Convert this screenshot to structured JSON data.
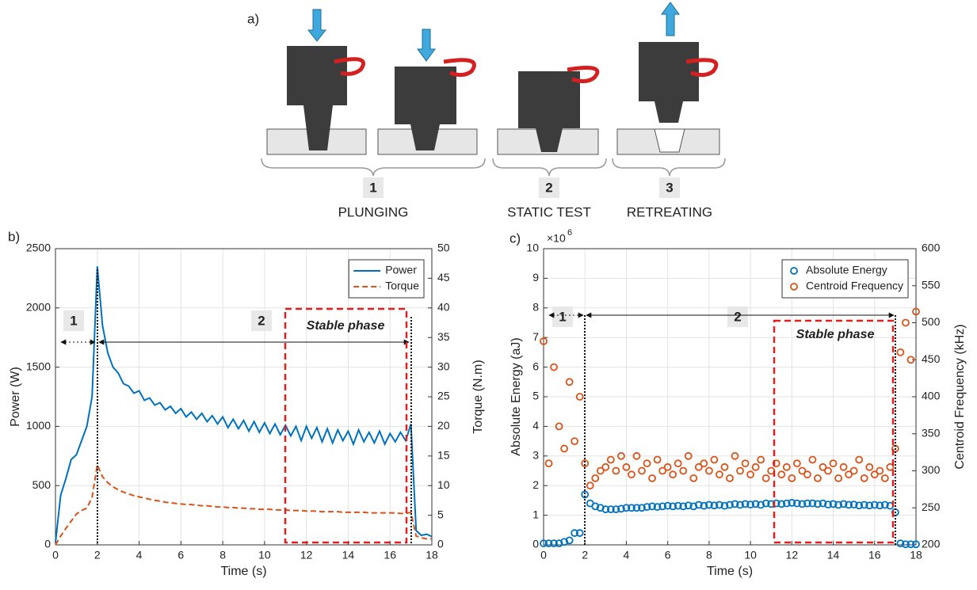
{
  "diagram": {
    "label": "a)",
    "steps": [
      {
        "number": "1",
        "label": "PLUNGING"
      },
      {
        "number": "2",
        "label": "STATIC TEST"
      },
      {
        "number": "3",
        "label": "RETREATING"
      }
    ]
  },
  "chart_data": [
    {
      "type": "line",
      "panel_label": "b)",
      "xlabel": "Time (s)",
      "ylabel": "Power (W)",
      "y2label": "Torque (N.m)",
      "x": [
        0,
        0.25,
        0.5,
        0.75,
        1,
        1.25,
        1.5,
        1.75,
        2,
        2.25,
        2.5,
        2.75,
        3,
        3.25,
        3.5,
        3.75,
        4,
        4.25,
        4.5,
        4.75,
        5,
        5.25,
        5.5,
        5.75,
        6,
        6.25,
        6.5,
        6.75,
        7,
        7.25,
        7.5,
        7.75,
        8,
        8.25,
        8.5,
        8.75,
        9,
        9.25,
        9.5,
        9.75,
        10,
        10.25,
        10.5,
        10.75,
        11,
        11.25,
        11.5,
        11.75,
        12,
        12.25,
        12.5,
        12.75,
        13,
        13.25,
        13.5,
        13.75,
        14,
        14.25,
        14.5,
        14.75,
        15,
        15.25,
        15.5,
        15.75,
        16,
        16.25,
        16.5,
        16.75,
        17,
        17.25,
        17.5,
        17.75,
        18
      ],
      "series": [
        {
          "name": "Power",
          "color": "#0072bd",
          "dashed": false,
          "values": [
            20,
            420,
            560,
            720,
            760,
            880,
            1000,
            1250,
            2350,
            1850,
            1620,
            1500,
            1450,
            1360,
            1340,
            1280,
            1300,
            1220,
            1240,
            1180,
            1200,
            1140,
            1170,
            1110,
            1150,
            1080,
            1120,
            1060,
            1110,
            1040,
            1090,
            1020,
            1080,
            990,
            1060,
            980,
            1050,
            960,
            1040,
            950,
            1030,
            940,
            1020,
            930,
            1010,
            920,
            1000,
            880,
            1000,
            900,
            990,
            870,
            980,
            860,
            970,
            880,
            960,
            850,
            970,
            870,
            950,
            860,
            960,
            850,
            940,
            870,
            950,
            880,
            1020,
            120,
            80,
            90,
            70
          ]
        },
        {
          "name": "Torque",
          "color": "#d95319",
          "dashed": true,
          "axis": "y2",
          "values": [
            0,
            1.5,
            2.8,
            4,
            5.2,
            5.8,
            6.2,
            8,
            13.5,
            11.5,
            10.5,
            9.8,
            9.3,
            8.9,
            8.6,
            8.3,
            8.1,
            7.9,
            7.7,
            7.5,
            7.4,
            7.2,
            7.1,
            7,
            6.9,
            6.8,
            6.8,
            6.7,
            6.6,
            6.6,
            6.5,
            6.4,
            6.4,
            6.3,
            6.3,
            6.2,
            6.2,
            6.1,
            6.1,
            6,
            6,
            6,
            5.9,
            5.9,
            5.9,
            5.8,
            5.8,
            5.8,
            5.7,
            5.7,
            5.7,
            5.6,
            5.6,
            5.6,
            5.6,
            5.5,
            5.5,
            5.5,
            5.5,
            5.5,
            5.4,
            5.4,
            5.4,
            5.4,
            5.4,
            5.4,
            5.3,
            5.3,
            5.5,
            1.5,
            1.2,
            1,
            1
          ]
        }
      ],
      "xlim": [
        0,
        18
      ],
      "xticks": [
        0,
        2,
        4,
        6,
        8,
        10,
        12,
        14,
        16,
        18
      ],
      "ylim": [
        0,
        2500
      ],
      "yticks": [
        0,
        500,
        1000,
        1500,
        2000,
        2500
      ],
      "y2lim": [
        0,
        50
      ],
      "y2ticks": [
        0,
        5,
        10,
        15,
        20,
        25,
        30,
        35,
        40,
        45,
        50
      ],
      "grid": true,
      "legend": "upper right",
      "annotations": {
        "phase_1": "1",
        "phase_2": "2",
        "stable": "Stable phase"
      }
    },
    {
      "type": "scatter",
      "panel_label": "c)",
      "xlabel": "Time (s)",
      "ylabel": "Absolute  Energy (aJ)",
      "y2label": "Centroid Frequency (kHz)",
      "y_exponent": {
        "base": "×10",
        "power": "6"
      },
      "x": [
        0,
        0.25,
        0.5,
        0.75,
        1,
        1.25,
        1.5,
        1.75,
        2,
        2.25,
        2.5,
        2.75,
        3,
        3.25,
        3.5,
        3.75,
        4,
        4.25,
        4.5,
        4.75,
        5,
        5.25,
        5.5,
        5.75,
        6,
        6.25,
        6.5,
        6.75,
        7,
        7.25,
        7.5,
        7.75,
        8,
        8.25,
        8.5,
        8.75,
        9,
        9.25,
        9.5,
        9.75,
        10,
        10.25,
        10.5,
        10.75,
        11,
        11.25,
        11.5,
        11.75,
        12,
        12.25,
        12.5,
        12.75,
        13,
        13.25,
        13.5,
        13.75,
        14,
        14.25,
        14.5,
        14.75,
        15,
        15.25,
        15.5,
        15.75,
        16,
        16.25,
        16.5,
        16.75,
        17,
        17.25,
        17.5,
        17.75,
        18
      ],
      "series": [
        {
          "name": "Absolute  Energy",
          "color": "#0072bd",
          "values": [
            0.05,
            0.05,
            0.05,
            0.05,
            0.1,
            0.15,
            0.4,
            0.4,
            1.7,
            1.4,
            1.3,
            1.25,
            1.2,
            1.2,
            1.2,
            1.22,
            1.25,
            1.25,
            1.25,
            1.25,
            1.28,
            1.3,
            1.28,
            1.3,
            1.32,
            1.3,
            1.32,
            1.3,
            1.33,
            1.3,
            1.35,
            1.32,
            1.35,
            1.33,
            1.35,
            1.32,
            1.35,
            1.38,
            1.35,
            1.38,
            1.36,
            1.38,
            1.35,
            1.4,
            1.38,
            1.4,
            1.38,
            1.4,
            1.42,
            1.4,
            1.38,
            1.4,
            1.4,
            1.38,
            1.4,
            1.36,
            1.38,
            1.35,
            1.38,
            1.35,
            1.36,
            1.33,
            1.35,
            1.33,
            1.35,
            1.33,
            1.35,
            1.32,
            1.1,
            0.05,
            0.02,
            0.02,
            0.02
          ]
        },
        {
          "name": "Centroid Frequency",
          "color": "#d95319",
          "axis": "y2",
          "values": [
            475,
            310,
            440,
            360,
            330,
            420,
            340,
            400,
            310,
            280,
            290,
            300,
            305,
            315,
            300,
            320,
            305,
            295,
            320,
            300,
            310,
            290,
            315,
            300,
            305,
            295,
            310,
            300,
            320,
            290,
            305,
            310,
            300,
            315,
            295,
            305,
            290,
            320,
            300,
            310,
            295,
            305,
            315,
            290,
            300,
            310,
            295,
            305,
            290,
            310,
            300,
            295,
            315,
            290,
            305,
            300,
            310,
            290,
            305,
            295,
            300,
            315,
            290,
            305,
            295,
            300,
            290,
            305,
            330,
            460,
            500,
            450,
            515
          ]
        }
      ],
      "xlim": [
        0,
        18
      ],
      "xticks": [
        0,
        2,
        4,
        6,
        8,
        10,
        12,
        14,
        16,
        18
      ],
      "ylim": [
        0,
        10
      ],
      "yticks": [
        0,
        1,
        2,
        3,
        4,
        5,
        6,
        7,
        8,
        9,
        10
      ],
      "y2lim": [
        200,
        600
      ],
      "y2ticks": [
        200,
        250,
        300,
        350,
        400,
        450,
        500,
        550,
        600
      ],
      "grid": true,
      "legend": "upper right",
      "annotations": {
        "phase_1": "1",
        "phase_2": "2",
        "stable": "Stable phase"
      }
    }
  ]
}
